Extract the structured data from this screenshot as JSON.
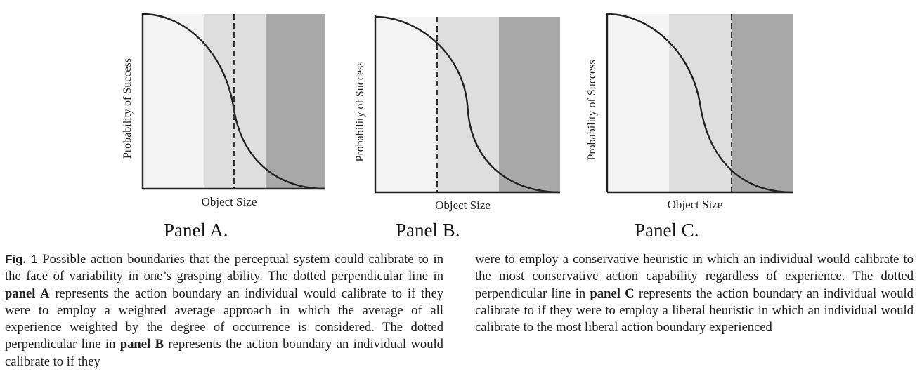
{
  "figure": {
    "panels": [
      {
        "id": "A",
        "label": "Panel A.",
        "xlabel": "Object Size",
        "ylabel": "Probability of Success",
        "action_boundary": "weighted-average"
      },
      {
        "id": "B",
        "label": "Panel B.",
        "xlabel": "Object Size",
        "ylabel": "Probability of Success",
        "action_boundary": "conservative"
      },
      {
        "id": "C",
        "label": "Panel C.",
        "xlabel": "Object Size",
        "ylabel": "Probability of Success",
        "action_boundary": "liberal"
      }
    ],
    "region_colors": [
      "#f3f3f3",
      "#dedede",
      "#a8a8a8"
    ],
    "curve_color": "#222222",
    "dashed_color": "#333333"
  },
  "caption": {
    "fig_label": "Fig.",
    "fig_number": "1",
    "left_column": [
      {
        "t": " Possible action boundaries that the perceptual system could calibrate to in the face of variability in one’s grasping ability. The dotted perpendicular line in "
      },
      {
        "t": "panel A",
        "b": true
      },
      {
        "t": " represents the action boundary an individual would calibrate to if they were to employ a weighted average approach in which the average of all experience weighted by the degree of occurrence is considered. The dotted perpendicular line in "
      },
      {
        "t": "panel B",
        "b": true
      },
      {
        "t": " represents the action boundary an individual would calibrate to if they"
      }
    ],
    "right_column": [
      {
        "t": "were to employ a conservative heuristic in which an individual would calibrate to the most conservative action capability regardless of experience. The dotted perpendicular line in "
      },
      {
        "t": "panel C",
        "b": true
      },
      {
        "t": " represents the action boundary an individual would calibrate to if they were to employ a liberal heuristic in which an individual would calibrate to the most liberal action boundary experienced"
      }
    ]
  }
}
